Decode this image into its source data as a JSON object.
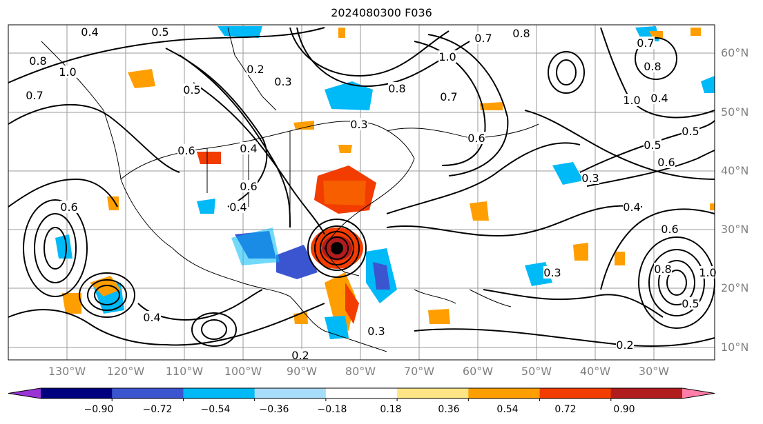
{
  "title": "2024080300 F036",
  "latitude_labels": [
    "60°N",
    "50°N",
    "40°N",
    "30°N",
    "20°N",
    "10°N"
  ],
  "longitude_labels": [
    "130°W",
    "120°W",
    "110°W",
    "100°W",
    "90°W",
    "80°W",
    "70°W",
    "60°W",
    "50°W",
    "40°W",
    "30°W"
  ],
  "contour_labels": [
    "0.5",
    "0.4",
    "0.8",
    "1.0",
    "0.7",
    "0.2",
    "0.3",
    "0.5",
    "0.6",
    "0.4",
    "0.3",
    "0.6",
    "0.7",
    "1.0",
    "0.8",
    "0.7",
    "0.6",
    "0.8",
    "0.7",
    "0.8",
    "1.0",
    "0.4",
    "0.5",
    "0.4",
    "0.6",
    "0.5",
    "0.6",
    "0.8",
    "1.0",
    "0.3",
    "0.3",
    "0.4",
    "0.2",
    "0.2",
    "0.5",
    "0.3",
    "0.4",
    "0.6"
  ],
  "colorbar": {
    "tick_labels": [
      "−0.90",
      "−0.72",
      "−0.54",
      "−0.36",
      "−0.18",
      "0.18",
      "0.36",
      "0.54",
      "0.72",
      "0.90"
    ],
    "colors": [
      "#9a33d6",
      "#00007f",
      "#3b55d1",
      "#00b9f7",
      "#a8dcfb",
      "#ffffff",
      "#fde585",
      "#ff9e00",
      "#f23c00",
      "#b11c1c",
      "#ff7ea8"
    ]
  }
}
